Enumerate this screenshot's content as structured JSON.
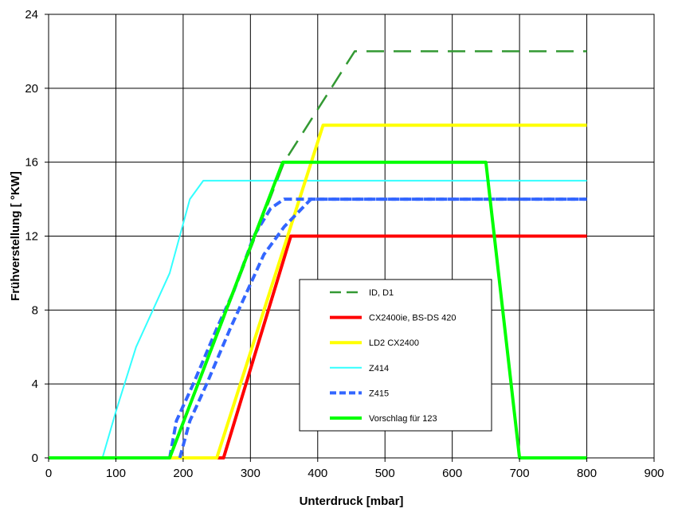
{
  "chart_data": {
    "type": "line",
    "title": "",
    "xlabel": "Unterdruck [mbar]",
    "ylabel": "Frühverstellung [ °KW]",
    "xlim": [
      0,
      900
    ],
    "ylim": [
      0,
      24
    ],
    "xticks": [
      0,
      100,
      200,
      300,
      400,
      500,
      600,
      700,
      800,
      900
    ],
    "yticks": [
      0,
      4,
      8,
      12,
      16,
      20,
      24
    ],
    "grid": true,
    "legend_position": "center-right",
    "series": [
      {
        "name": "ID, D1",
        "color": "#339933",
        "style": "long-dash",
        "width": 2.5,
        "points": [
          [
            180,
            0
          ],
          [
            350,
            16
          ],
          [
            455,
            22
          ],
          [
            800,
            22
          ]
        ]
      },
      {
        "name": "CX2400ie, BS-DS 420",
        "color": "#ff0000",
        "style": "solid",
        "width": 4,
        "points": [
          [
            0,
            0
          ],
          [
            260,
            0
          ],
          [
            360,
            12
          ],
          [
            800,
            12
          ]
        ]
      },
      {
        "name": "LD2 CX2400",
        "color": "#ffff00",
        "style": "solid",
        "width": 4,
        "points": [
          [
            0,
            0
          ],
          [
            250,
            0
          ],
          [
            408,
            18
          ],
          [
            800,
            18
          ]
        ]
      },
      {
        "name": "Z414",
        "color": "#33ffff",
        "style": "solid",
        "width": 2,
        "points": [
          [
            0,
            0
          ],
          [
            80,
            0
          ],
          [
            100,
            2.5
          ],
          [
            130,
            6
          ],
          [
            180,
            10
          ],
          [
            210,
            14
          ],
          [
            230,
            15
          ],
          [
            800,
            15
          ]
        ]
      },
      {
        "name": "Z415",
        "color": "#3366ff",
        "style": "short-dash",
        "width": 4,
        "points_a": [
          [
            180,
            0
          ],
          [
            190,
            2
          ],
          [
            215,
            4
          ],
          [
            250,
            7
          ],
          [
            275,
            9
          ],
          [
            305,
            12
          ],
          [
            330,
            13.5
          ],
          [
            350,
            14
          ],
          [
            800,
            14
          ]
        ],
        "points_b": [
          [
            195,
            0
          ],
          [
            210,
            2
          ],
          [
            235,
            4
          ],
          [
            270,
            7
          ],
          [
            295,
            9
          ],
          [
            320,
            11
          ],
          [
            350,
            12.5
          ],
          [
            390,
            14
          ],
          [
            800,
            14
          ]
        ]
      },
      {
        "name": "Vorschlag für 123",
        "color": "#00ff00",
        "style": "solid",
        "width": 4,
        "points": [
          [
            0,
            0
          ],
          [
            180,
            0
          ],
          [
            348,
            16
          ],
          [
            650,
            16
          ],
          [
            700,
            0
          ],
          [
            800,
            0
          ]
        ]
      }
    ]
  }
}
